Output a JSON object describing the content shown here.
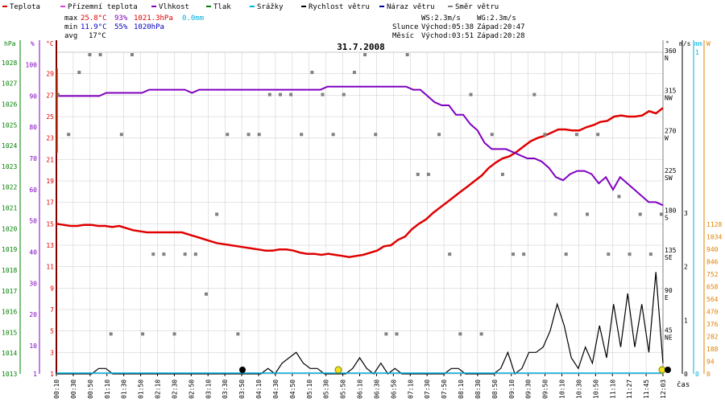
{
  "legend": [
    {
      "label": "Teplota",
      "color": "#e00000"
    },
    {
      "label": "Přízemní teplota",
      "color": "#e040e0"
    },
    {
      "label": "Vlhkost",
      "color": "#8000c0"
    },
    {
      "label": "Tlak",
      "color": "#008000"
    },
    {
      "label": "Srážky",
      "color": "#00b0e0"
    },
    {
      "label": "Rychlost větru",
      "color": "#000000"
    },
    {
      "label": "Náraz větru",
      "color": "#0000a0"
    },
    {
      "label": "Směr větru",
      "color": "#808080"
    }
  ],
  "stats": {
    "max": {
      "label": "max",
      "temp": "25.8°C",
      "hum": "93%",
      "press": "1021.3hPa",
      "rain": "0.0mm"
    },
    "min": {
      "label": "min",
      "temp": "11.9°C",
      "hum": "55%",
      "press": "1020hPa"
    },
    "avg": {
      "label": "avg",
      "temp": "17°C"
    }
  },
  "wind_info": {
    "ws": "WS:2.3m/s",
    "wg": "WG:2.3m/s"
  },
  "sun": {
    "label": "Slunce",
    "rise": "Východ:05:38",
    "set": "Západ:20:47"
  },
  "moon": {
    "label": "Měsíc",
    "rise": "Východ:03:51",
    "set": "Západ:20:28"
  },
  "date": "31.7.2008",
  "time_label": "čas",
  "colors": {
    "temp": "#e00000",
    "hum": "#8000c0",
    "press": "#008000",
    "rain": "#00b0e0",
    "wind": "#000000",
    "gust": "#0000a0",
    "dir": "#808080",
    "solar": "#e08000",
    "grid": "#c8c8c8"
  },
  "chart_data": {
    "type": "line",
    "title": "31.7.2008",
    "xlabel": "čas",
    "x_ticks": [
      "00:10",
      "00:30",
      "00:50",
      "01:10",
      "01:30",
      "01:50",
      "02:10",
      "02:30",
      "02:50",
      "03:10",
      "03:30",
      "03:50",
      "04:10",
      "04:30",
      "04:50",
      "05:10",
      "05:30",
      "05:50",
      "06:10",
      "06:30",
      "06:50",
      "07:10",
      "07:30",
      "07:50",
      "08:10",
      "08:30",
      "08:50",
      "09:10",
      "09:30",
      "09:50",
      "10:10",
      "10:30",
      "10:50",
      "11:10",
      "11:27",
      "11:45",
      "12:03"
    ],
    "axes": {
      "pressure": {
        "unit": "hPa",
        "ticks": [
          "1013",
          "1014",
          "1015",
          "1016",
          "1017",
          "1018",
          "1019",
          "1020",
          "1021",
          "1022",
          "1023",
          "1024",
          "1025",
          "1026",
          "1027",
          "1028"
        ],
        "range": [
          1013,
          1028.5
        ]
      },
      "humidity": {
        "unit": "%",
        "ticks": [
          "1",
          "10",
          "20",
          "30",
          "40",
          "50",
          "60",
          "70",
          "80",
          "90",
          "100"
        ],
        "range": [
          1,
          104
        ]
      },
      "temperature": {
        "unit": "°C",
        "ticks": [
          "1",
          "3",
          "5",
          "7",
          "9",
          "11",
          "13",
          "15",
          "17",
          "19",
          "21",
          "23",
          "25",
          "27",
          "29"
        ],
        "range": [
          1,
          31
        ]
      },
      "direction": {
        "unit": "°",
        "ticks": [
          "0",
          "45",
          "90",
          "135",
          "180",
          "225",
          "270",
          "315",
          "360"
        ],
        "ticks_sub": [
          "",
          "NE",
          "E",
          "SE",
          "S",
          "SW",
          "W",
          "NW",
          "N"
        ],
        "range": [
          0,
          360
        ]
      },
      "wind": {
        "unit": "m/s",
        "ticks": [
          "0",
          "1",
          "2",
          "3"
        ],
        "range": [
          0,
          3
        ]
      },
      "rain": {
        "unit": "mm",
        "ticks": [
          "0",
          "1"
        ]
      },
      "solar": {
        "unit": "W",
        "ticks": [
          "0",
          "94",
          "188",
          "282",
          "376",
          "470",
          "564",
          "658",
          "752",
          "846",
          "940",
          "1034",
          "1128"
        ],
        "range": [
          0,
          1128
        ]
      }
    },
    "series": [
      {
        "name": "Teplota",
        "axis": "temperature",
        "values": [
          15,
          14.9,
          14.8,
          14.8,
          14.9,
          14.9,
          14.8,
          14.8,
          14.7,
          14.8,
          14.6,
          14.4,
          14.3,
          14.2,
          14.2,
          14.2,
          14.2,
          14.2,
          14.2,
          14,
          13.8,
          13.6,
          13.4,
          13.2,
          13.1,
          13,
          12.9,
          12.8,
          12.7,
          12.6,
          12.5,
          12.5,
          12.6,
          12.6,
          12.5,
          12.3,
          12.2,
          12.2,
          12.1,
          12.2,
          12.1,
          12,
          11.9,
          12,
          12.1,
          12.3,
          12.5,
          12.9,
          13,
          13.5,
          13.8,
          14.5,
          15,
          15.4,
          16,
          16.5,
          17,
          17.5,
          18,
          18.5,
          19,
          19.5,
          20.2,
          20.7,
          21.1,
          21.3,
          21.7,
          22.2,
          22.7,
          23,
          23.2,
          23.5,
          23.8,
          23.8,
          23.7,
          23.7,
          24,
          24.2,
          24.5,
          24.6,
          25,
          25.1,
          25,
          25,
          25.1,
          25.5,
          25.3,
          25.8
        ]
      },
      {
        "name": "Vlhkost",
        "axis": "humidity",
        "values": [
          90,
          90,
          90,
          90,
          90,
          90,
          90,
          91,
          91,
          91,
          91,
          91,
          91,
          92,
          92,
          92,
          92,
          92,
          92,
          91,
          92,
          92,
          92,
          92,
          92,
          92,
          92,
          92,
          92,
          92,
          92,
          92,
          92,
          92,
          92,
          92,
          92,
          92,
          93,
          93,
          93,
          93,
          93,
          93,
          93,
          93,
          93,
          93,
          93,
          93,
          92,
          92,
          90,
          88,
          87,
          87,
          84,
          84,
          81,
          79,
          75,
          73,
          73,
          73,
          72,
          71,
          70,
          70,
          69,
          67,
          64,
          63,
          65,
          66,
          66,
          65,
          62,
          64,
          60,
          64,
          62,
          60,
          58,
          56,
          56,
          55
        ]
      },
      {
        "name": "Rychlost větru",
        "axis": "wind",
        "values": [
          0,
          0,
          0,
          0,
          0,
          0,
          0.1,
          0.1,
          0,
          0,
          0,
          0,
          0,
          0,
          0,
          0,
          0,
          0,
          0,
          0,
          0,
          0,
          0,
          0,
          0,
          0,
          0,
          0,
          0,
          0,
          0.1,
          0,
          0.2,
          0.3,
          0.4,
          0.2,
          0.1,
          0.1,
          0,
          0,
          0,
          0,
          0.1,
          0.3,
          0.1,
          0,
          0.2,
          0,
          0.1,
          0,
          0,
          0,
          0,
          0,
          0,
          0,
          0.1,
          0.1,
          0,
          0,
          0,
          0,
          0,
          0.1,
          0.4,
          0,
          0.1,
          0.4,
          0.4,
          0.5,
          0.8,
          1.3,
          0.9,
          0.3,
          0.1,
          0.5,
          0.2,
          0.9,
          0.3,
          1.3,
          0.5,
          1.5,
          0.5,
          1.3,
          0.4,
          1.9,
          0.2
        ]
      },
      {
        "name": "Směr větru",
        "axis": "direction",
        "type": "scatter",
        "values": [
          315,
          270,
          340,
          360,
          360,
          45,
          270,
          360,
          45,
          135,
          135,
          45,
          135,
          135,
          90,
          180,
          270,
          45,
          270,
          270,
          315,
          315,
          315,
          270,
          340,
          315,
          270,
          315,
          340,
          360,
          270,
          45,
          45,
          360,
          225,
          225,
          270,
          135,
          45,
          315,
          45,
          270,
          225,
          135,
          135,
          315,
          270,
          180,
          135,
          270,
          180,
          270,
          135,
          200,
          135,
          180,
          135,
          180
        ]
      }
    ]
  }
}
